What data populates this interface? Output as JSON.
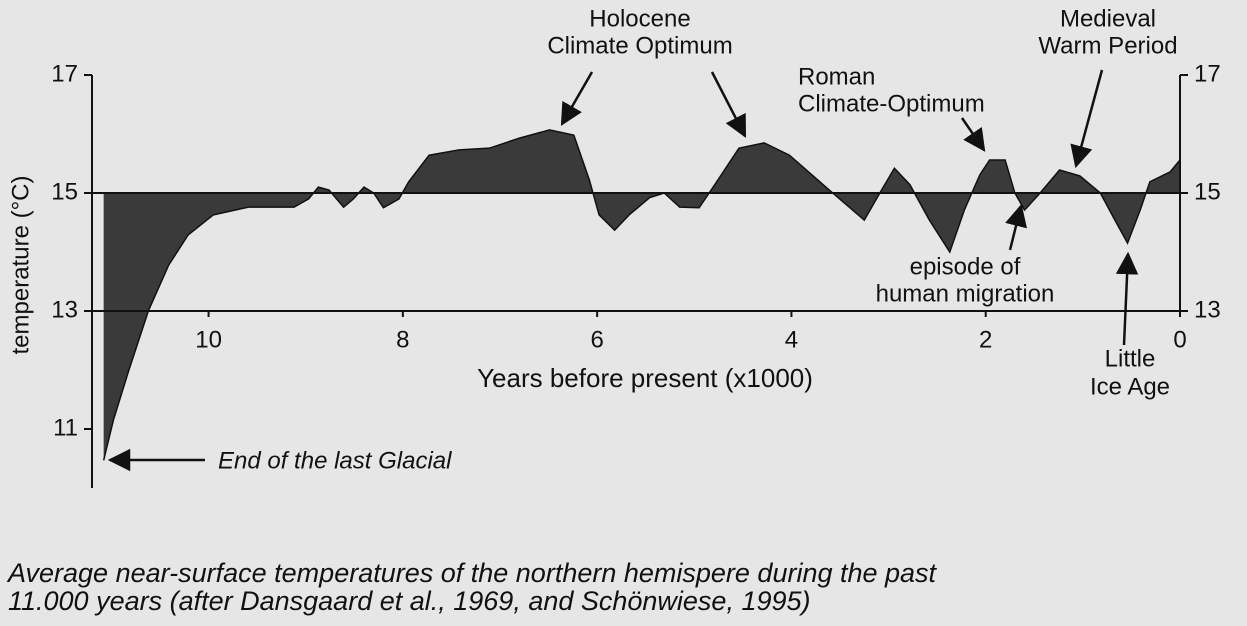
{
  "chart_data": {
    "type": "area",
    "x_label": "Years before present (x1000)",
    "y_label": "temperature (°C)",
    "caption": [
      "Average near-surface temperatures of the northern hemispere during the past",
      "11.000 years (after Dansgaard et al., 1969, and Schönwiese, 1995)"
    ],
    "xlim": [
      11.2,
      0
    ],
    "xticks": [
      10,
      8,
      6,
      4,
      2,
      0
    ],
    "ylim": [
      10,
      17
    ],
    "yticks": [
      11,
      13,
      15,
      17
    ],
    "y2lim": [
      10,
      17
    ],
    "y2ticks": [
      13,
      15,
      17
    ],
    "baseline": 15,
    "color": "#3a3a3a",
    "x": [
      11.08,
      10.98,
      10.82,
      10.62,
      10.41,
      10.21,
      9.95,
      9.59,
      9.12,
      8.97,
      8.87,
      8.76,
      8.61,
      8.51,
      8.4,
      8.3,
      8.2,
      8.04,
      7.94,
      7.73,
      7.42,
      7.11,
      6.8,
      6.49,
      6.24,
      6.08,
      5.98,
      5.82,
      5.67,
      5.46,
      5.31,
      5.15,
      4.95,
      4.79,
      4.54,
      4.28,
      4.02,
      3.61,
      3.25,
      3.09,
      2.94,
      2.78,
      2.58,
      2.37,
      2.22,
      2.06,
      1.96,
      1.8,
      1.7,
      1.6,
      1.44,
      1.24,
      1.03,
      0.82,
      0.67,
      0.54,
      0.41,
      0.31,
      0.1,
      0
    ],
    "values": [
      10.47,
      11.15,
      12.0,
      13.0,
      13.78,
      14.29,
      14.63,
      14.76,
      14.76,
      14.9,
      15.1,
      15.05,
      14.76,
      14.9,
      15.1,
      15.0,
      14.75,
      14.9,
      15.19,
      15.64,
      15.73,
      15.76,
      15.93,
      16.07,
      15.98,
      15.22,
      14.63,
      14.37,
      14.63,
      14.92,
      15.0,
      14.76,
      14.75,
      15.14,
      15.76,
      15.85,
      15.64,
      15.05,
      14.54,
      15.0,
      15.42,
      15.14,
      14.54,
      14.0,
      14.71,
      15.31,
      15.56,
      15.56,
      15.0,
      14.71,
      15.0,
      15.39,
      15.29,
      15.0,
      14.54,
      14.15,
      14.71,
      15.19,
      15.36,
      15.56
    ],
    "annotations": [
      {
        "lines": [
          "Holocene",
          "Climate Optimum"
        ]
      },
      {
        "lines": [
          "Medieval",
          "Warm Period"
        ]
      },
      {
        "lines": [
          "Roman",
          "Climate-Optimum"
        ]
      },
      {
        "lines": [
          "episode of",
          "human migration"
        ]
      },
      {
        "lines": [
          "Little",
          "Ice Age"
        ]
      },
      {
        "lines": [
          "End of the last Glacial"
        ]
      }
    ]
  }
}
